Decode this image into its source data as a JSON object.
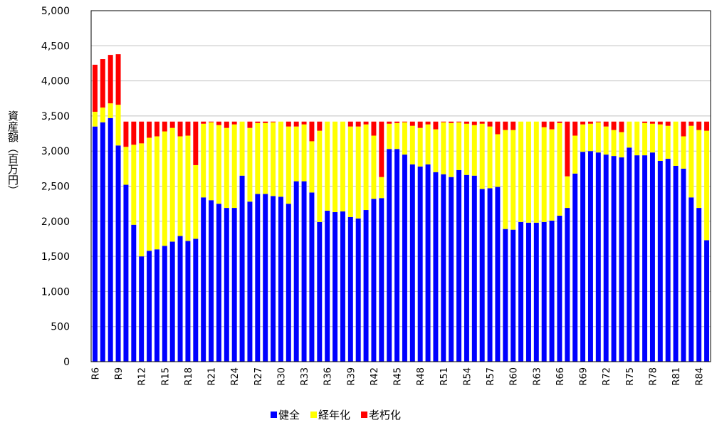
{
  "chart_data": {
    "type": "stacked-bar",
    "y_label": "資産額（百万円）",
    "categories": [
      "R6",
      null,
      null,
      "R9",
      null,
      null,
      "R12",
      null,
      null,
      "R15",
      null,
      null,
      "R18",
      null,
      null,
      "R21",
      null,
      null,
      "R24",
      null,
      null,
      "R27",
      null,
      null,
      "R30",
      null,
      null,
      "R33",
      null,
      null,
      "R36",
      null,
      null,
      "R39",
      null,
      null,
      "R42",
      null,
      null,
      "R45",
      null,
      null,
      "R48",
      null,
      null,
      "R51",
      null,
      null,
      "R54",
      null,
      null,
      "R57",
      null,
      null,
      "R60",
      null,
      null,
      "R63",
      null,
      null,
      "R66",
      null,
      null,
      "R69",
      null,
      null,
      "R72",
      null,
      null,
      "R75",
      null,
      null,
      "R78",
      null,
      null,
      "R81",
      null,
      null,
      "R84",
      null
    ],
    "series": [
      {
        "name": "健全",
        "color": "#0000ff",
        "values": [
          3350,
          3410,
          3470,
          3080,
          2520,
          1950,
          1500,
          1580,
          1600,
          1650,
          1710,
          1790,
          1720,
          1750,
          2340,
          2300,
          2250,
          2190,
          2190,
          2650,
          2280,
          2390,
          2390,
          2360,
          2350,
          2250,
          2570,
          2570,
          2410,
          1990,
          2150,
          2130,
          2140,
          2060,
          2040,
          2160,
          2320,
          2330,
          3030,
          3030,
          2950,
          2810,
          2780,
          2810,
          2700,
          2670,
          2630,
          2730,
          2660,
          2650,
          2460,
          2470,
          2490,
          1890,
          1880,
          1990,
          1980,
          1980,
          1990,
          2010,
          2080,
          2190,
          2680,
          2990,
          3000,
          2980,
          2950,
          2930,
          2910,
          3050,
          2940,
          2940,
          2980,
          2860,
          2890,
          2790,
          2750,
          2340,
          2190,
          1730
        ]
      },
      {
        "name": "経年化",
        "color": "#ffff00",
        "values": [
          210,
          210,
          210,
          580,
          540,
          1140,
          1610,
          1610,
          1610,
          1630,
          1620,
          1420,
          1500,
          1050,
          1050,
          1110,
          1120,
          1140,
          1190,
          770,
          1050,
          1010,
          1010,
          1050,
          1070,
          1100,
          780,
          810,
          730,
          1300,
          1270,
          1290,
          1280,
          1290,
          1310,
          1220,
          900,
          300,
          360,
          370,
          460,
          550,
          550,
          570,
          610,
          740,
          770,
          680,
          730,
          720,
          930,
          880,
          750,
          1410,
          1420,
          1430,
          1440,
          1440,
          1350,
          1300,
          1320,
          450,
          540,
          390,
          390,
          430,
          400,
          370,
          360,
          370,
          480,
          460,
          410,
          520,
          470,
          630,
          460,
          1020,
          1110,
          1560
        ]
      },
      {
        "name": "老朽化",
        "color": "#ff0000",
        "values": [
          670,
          690,
          690,
          720,
          360,
          330,
          310,
          230,
          210,
          140,
          90,
          210,
          200,
          620,
          30,
          10,
          50,
          90,
          40,
          0,
          90,
          20,
          20,
          10,
          0,
          70,
          70,
          40,
          280,
          130,
          0,
          0,
          0,
          70,
          70,
          40,
          200,
          790,
          30,
          20,
          10,
          60,
          90,
          40,
          110,
          10,
          20,
          10,
          30,
          50,
          30,
          70,
          180,
          120,
          120,
          0,
          0,
          0,
          80,
          110,
          20,
          780,
          200,
          40,
          30,
          10,
          70,
          120,
          150,
          0,
          0,
          20,
          30,
          40,
          60,
          0,
          210,
          60,
          120,
          130
        ]
      }
    ],
    "ylim": [
      0,
      5000
    ],
    "yticks": [
      0,
      500,
      {
        "value": 1000,
        "label": "1,000"
      },
      {
        "value": 1500,
        "label": "1,500"
      },
      {
        "value": 2000,
        "label": "2,000"
      },
      {
        "value": 2500,
        "label": "2,500"
      },
      {
        "value": 3000,
        "label": "3,000"
      },
      {
        "value": 3500,
        "label": "3,500"
      },
      {
        "value": 4000,
        "label": "4,000"
      },
      {
        "value": 4500,
        "label": "4,500"
      },
      {
        "value": 5000,
        "label": "5,000"
      }
    ],
    "grid": true,
    "legend": "bottom"
  }
}
